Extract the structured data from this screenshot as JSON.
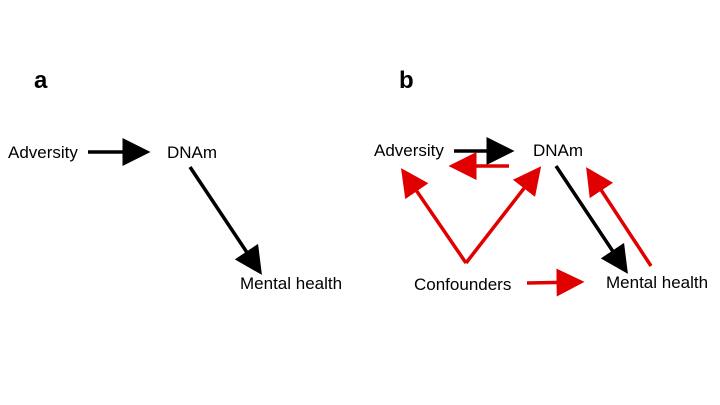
{
  "colors": {
    "causal_arrow": "#000000",
    "bias_arrow": "#e00000",
    "background": "#ffffff"
  },
  "panel_a": {
    "letter": "a",
    "nodes": {
      "adversity": "Adversity",
      "dnam": "DNAm",
      "mental_health": "Mental health"
    }
  },
  "panel_b": {
    "letter": "b",
    "nodes": {
      "adversity": "Adversity",
      "dnam": "DNAm",
      "mental_health": "Mental health",
      "confounders": "Confounders"
    }
  }
}
